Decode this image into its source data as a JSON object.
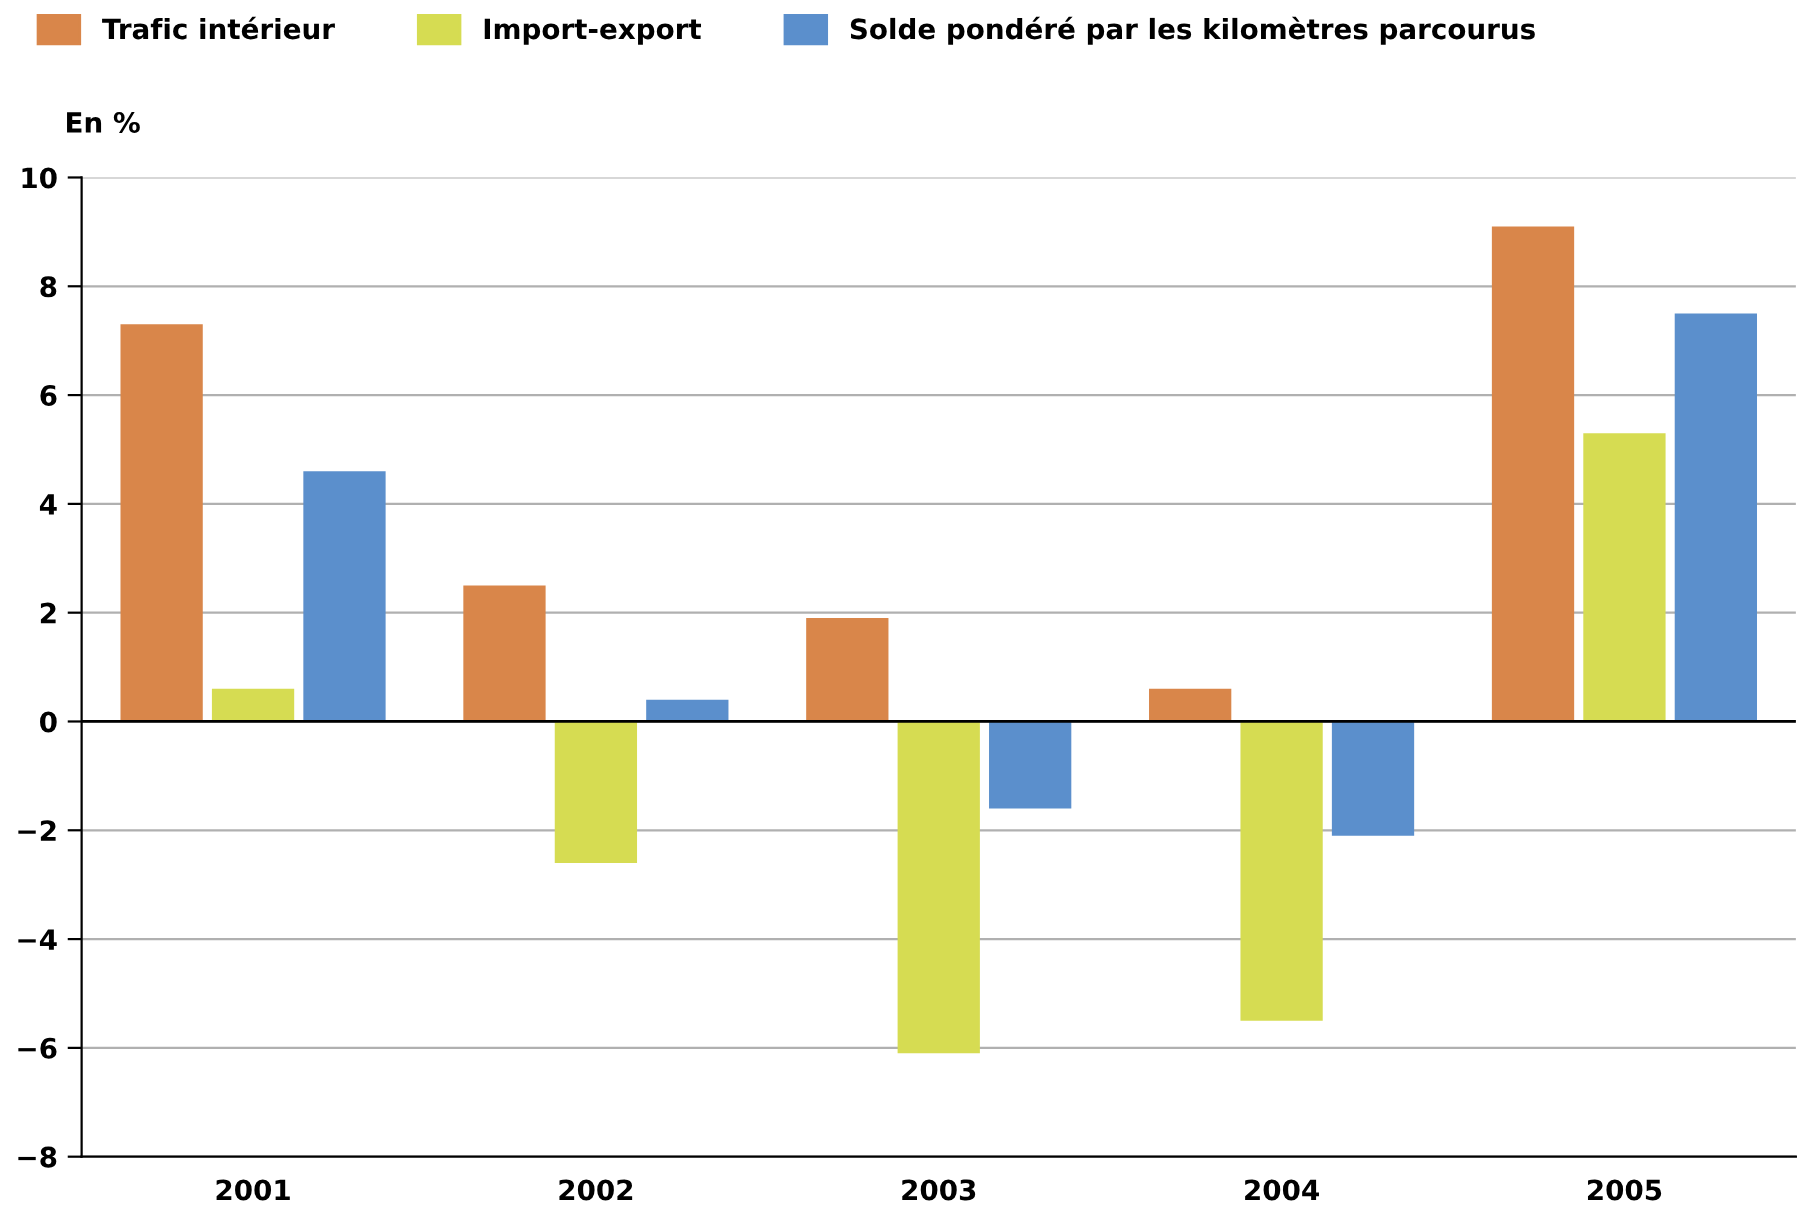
{
  "chart_data": {
    "type": "bar",
    "ylabel": "En %",
    "categories": [
      "2001",
      "2002",
      "2003",
      "2004",
      "2005"
    ],
    "series": [
      {
        "name": "Trafic intérieur",
        "color": "#d9864a",
        "values": [
          7.3,
          2.5,
          1.9,
          0.6,
          9.1
        ]
      },
      {
        "name": "Import-export",
        "color": "#d6dc52",
        "values": [
          0.6,
          -2.6,
          -6.1,
          -5.5,
          5.3
        ]
      },
      {
        "name": "Solde pondéré par les kilomètres parcourus",
        "color": "#5b8fcc",
        "values": [
          4.6,
          0.4,
          -1.6,
          -2.1,
          7.5
        ]
      }
    ],
    "ylim": [
      -8,
      10
    ],
    "yticks": [
      {
        "value": -8,
        "label": "−8"
      },
      {
        "value": -6,
        "label": "−6"
      },
      {
        "value": -4,
        "label": "−4"
      },
      {
        "value": -2,
        "label": "−2"
      },
      0,
      2,
      4,
      6,
      8,
      10
    ],
    "ref_lines": [
      {
        "axis": "y",
        "value": 0,
        "color": "#000000"
      }
    ],
    "grid": "y",
    "legend": "top left"
  }
}
